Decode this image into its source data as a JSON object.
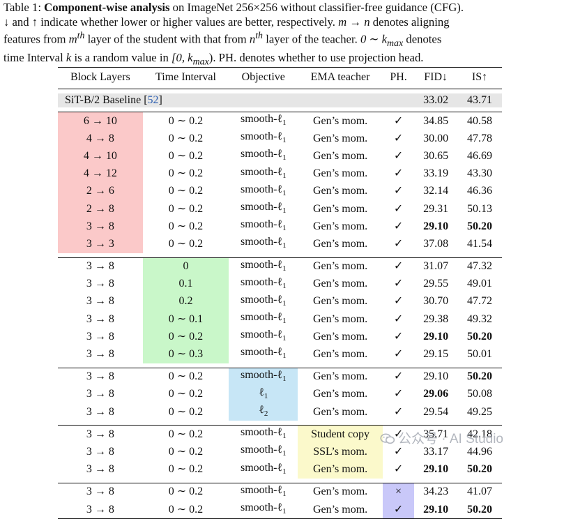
{
  "caption": {
    "line1": [
      "Table 1: ",
      "Component-wise analysis",
      " on ImageNet 256×256 without classifier-free guidance (CFG)."
    ],
    "line2": [
      "↓ and ↑ indicate whether lower or higher values are better, respectively. ",
      "m → n",
      " denotes aligning"
    ],
    "line3": [
      "features from ",
      "m",
      "th",
      " layer of the student with that from ",
      "n",
      "th",
      " layer of the teacher. ",
      "0 ∼ k",
      "max",
      " denotes"
    ],
    "line4": [
      "time Interval ",
      "k",
      " is a random value in ",
      "[0, k",
      "max",
      ")",
      ". PH. denotes whether to use projection head."
    ]
  },
  "table": {
    "headers": [
      "Block Layers",
      "Time Interval",
      "Objective",
      "EMA teacher",
      "PH.",
      "FID↓",
      "IS↑"
    ],
    "baseline": {
      "label": "SiT-B/2 Baseline [",
      "ref": "52",
      "label_end": "]",
      "fid": "33.02",
      "is": "43.71"
    },
    "groups": [
      [
        {
          "block": "6 → 10",
          "time": "0 ∼ 0.2",
          "obj": "smooth-ℓ",
          "obj_sub": "1",
          "ema": "Gen’s mom.",
          "ph": "✓",
          "fid": "34.85",
          "is": "40.58"
        },
        {
          "block": "4 → 8",
          "time": "0 ∼ 0.2",
          "obj": "smooth-ℓ",
          "obj_sub": "1",
          "ema": "Gen’s mom.",
          "ph": "✓",
          "fid": "30.00",
          "is": "47.78"
        },
        {
          "block": "4 → 10",
          "time": "0 ∼ 0.2",
          "obj": "smooth-ℓ",
          "obj_sub": "1",
          "ema": "Gen’s mom.",
          "ph": "✓",
          "fid": "30.65",
          "is": "46.69"
        },
        {
          "block": "4 → 12",
          "time": "0 ∼ 0.2",
          "obj": "smooth-ℓ",
          "obj_sub": "1",
          "ema": "Gen’s mom.",
          "ph": "✓",
          "fid": "33.19",
          "is": "43.30"
        },
        {
          "block": "2 → 6",
          "time": "0 ∼ 0.2",
          "obj": "smooth-ℓ",
          "obj_sub": "1",
          "ema": "Gen’s mom.",
          "ph": "✓",
          "fid": "32.14",
          "is": "46.36"
        },
        {
          "block": "2 → 8",
          "time": "0 ∼ 0.2",
          "obj": "smooth-ℓ",
          "obj_sub": "1",
          "ema": "Gen’s mom.",
          "ph": "✓",
          "fid": "29.31",
          "is": "50.13"
        },
        {
          "block": "3 → 8",
          "time": "0 ∼ 0.2",
          "obj": "smooth-ℓ",
          "obj_sub": "1",
          "ema": "Gen’s mom.",
          "ph": "✓",
          "fid": "29.10",
          "is": "50.20",
          "bold_fid": true,
          "bold_is": true
        },
        {
          "block": "3 → 3",
          "time": "0 ∼ 0.2",
          "obj": "smooth-ℓ",
          "obj_sub": "1",
          "ema": "Gen’s mom.",
          "ph": "✓",
          "fid": "37.08",
          "is": "41.54"
        }
      ],
      [
        {
          "block": "3 → 8",
          "time": "0",
          "obj": "smooth-ℓ",
          "obj_sub": "1",
          "ema": "Gen’s mom.",
          "ph": "✓",
          "fid": "31.07",
          "is": "47.32"
        },
        {
          "block": "3 → 8",
          "time": "0.1",
          "obj": "smooth-ℓ",
          "obj_sub": "1",
          "ema": "Gen’s mom.",
          "ph": "✓",
          "fid": "29.55",
          "is": "49.01"
        },
        {
          "block": "3 → 8",
          "time": "0.2",
          "obj": "smooth-ℓ",
          "obj_sub": "1",
          "ema": "Gen’s mom.",
          "ph": "✓",
          "fid": "30.70",
          "is": "47.72"
        },
        {
          "block": "3 → 8",
          "time": "0 ∼ 0.1",
          "obj": "smooth-ℓ",
          "obj_sub": "1",
          "ema": "Gen’s mom.",
          "ph": "✓",
          "fid": "29.38",
          "is": "49.32"
        },
        {
          "block": "3 → 8",
          "time": "0 ∼ 0.2",
          "obj": "smooth-ℓ",
          "obj_sub": "1",
          "ema": "Gen’s mom.",
          "ph": "✓",
          "fid": "29.10",
          "is": "50.20",
          "bold_fid": true,
          "bold_is": true
        },
        {
          "block": "3 → 8",
          "time": "0 ∼ 0.3",
          "obj": "smooth-ℓ",
          "obj_sub": "1",
          "ema": "Gen’s mom.",
          "ph": "✓",
          "fid": "29.15",
          "is": "50.01"
        }
      ],
      [
        {
          "block": "3 → 8",
          "time": "0 ∼ 0.2",
          "obj": "smooth-ℓ",
          "obj_sub": "1",
          "ema": "Gen’s mom.",
          "ph": "✓",
          "fid": "29.10",
          "is": "50.20",
          "bold_is": true
        },
        {
          "block": "3 → 8",
          "time": "0 ∼ 0.2",
          "obj": "ℓ",
          "obj_sub": "1",
          "ema": "Gen’s mom.",
          "ph": "✓",
          "fid": "29.06",
          "is": "50.08",
          "bold_fid": true
        },
        {
          "block": "3 → 8",
          "time": "0 ∼ 0.2",
          "obj": "ℓ",
          "obj_sub": "2",
          "ema": "Gen’s mom.",
          "ph": "✓",
          "fid": "29.54",
          "is": "49.25"
        }
      ],
      [
        {
          "block": "3 → 8",
          "time": "0 ∼ 0.2",
          "obj": "smooth-ℓ",
          "obj_sub": "1",
          "ema": "Student copy",
          "ph": "✓",
          "fid": "35.71",
          "is": "42.18"
        },
        {
          "block": "3 → 8",
          "time": "0 ∼ 0.2",
          "obj": "smooth-ℓ",
          "obj_sub": "1",
          "ema": "SSL’s mom.",
          "ph": "✓",
          "fid": "33.17",
          "is": "44.96"
        },
        {
          "block": "3 → 8",
          "time": "0 ∼ 0.2",
          "obj": "smooth-ℓ",
          "obj_sub": "1",
          "ema": "Gen’s mom.",
          "ph": "✓",
          "fid": "29.10",
          "is": "50.20",
          "bold_fid": true,
          "bold_is": true
        }
      ],
      [
        {
          "block": "3 → 8",
          "time": "0 ∼ 0.2",
          "obj": "smooth-ℓ",
          "obj_sub": "1",
          "ema": "Gen’s mom.",
          "ph": "×",
          "fid": "34.23",
          "is": "41.07"
        },
        {
          "block": "3 → 8",
          "time": "0 ∼ 0.2",
          "obj": "smooth-ℓ",
          "obj_sub": "1",
          "ema": "Gen’s mom.",
          "ph": "✓",
          "fid": "29.10",
          "is": "50.20",
          "bold_fid": true,
          "bold_is": true
        }
      ]
    ],
    "highlight_colors": {
      "block": "#fbc9c9",
      "time": "#c9f7c9",
      "objective": "#c7e6f6",
      "ema": "#fbf9cb",
      "ph": "#c9c8f9",
      "baseline": "#e6e6e6"
    }
  },
  "watermark": {
    "icon": "wechat-icon",
    "text": "公众号 · AI Studio"
  }
}
